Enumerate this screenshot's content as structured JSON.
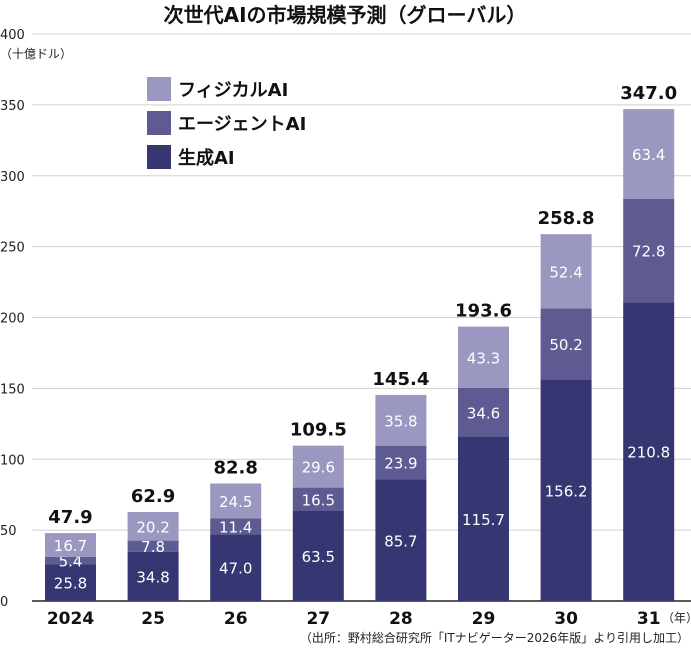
{
  "chart_data": {
    "type": "bar",
    "stacked": true,
    "title": "次世代AIの市場規模予測（グローバル）",
    "ylabel": "（十億ドル）",
    "xlabel_unit": "（年）",
    "source": "（出所：野村総合研究所「ITナビゲーター2026年版」より引用し加工）",
    "ylim": [
      0,
      400
    ],
    "yticks": [
      0,
      50,
      100,
      150,
      200,
      250,
      300,
      350,
      400
    ],
    "grid": true,
    "legend_position": "top-left",
    "categories": [
      "2024",
      "25",
      "26",
      "27",
      "28",
      "29",
      "30",
      "31"
    ],
    "series": [
      {
        "name": "生成AI",
        "color": "#363672",
        "values": [
          25.8,
          34.8,
          47.0,
          63.5,
          85.7,
          115.7,
          156.2,
          210.8
        ]
      },
      {
        "name": "エージェントAI",
        "color": "#5d5b92",
        "values": [
          5.4,
          7.8,
          11.4,
          16.5,
          23.9,
          34.6,
          50.2,
          72.8
        ]
      },
      {
        "name": "フィジカルAI",
        "color": "#9a98c0",
        "values": [
          16.7,
          20.2,
          24.5,
          29.6,
          35.8,
          43.3,
          52.4,
          63.4
        ]
      }
    ],
    "totals": [
      "47.9",
      "62.9",
      "82.8",
      "109.5",
      "145.4",
      "193.6",
      "258.8",
      "347.0"
    ]
  }
}
